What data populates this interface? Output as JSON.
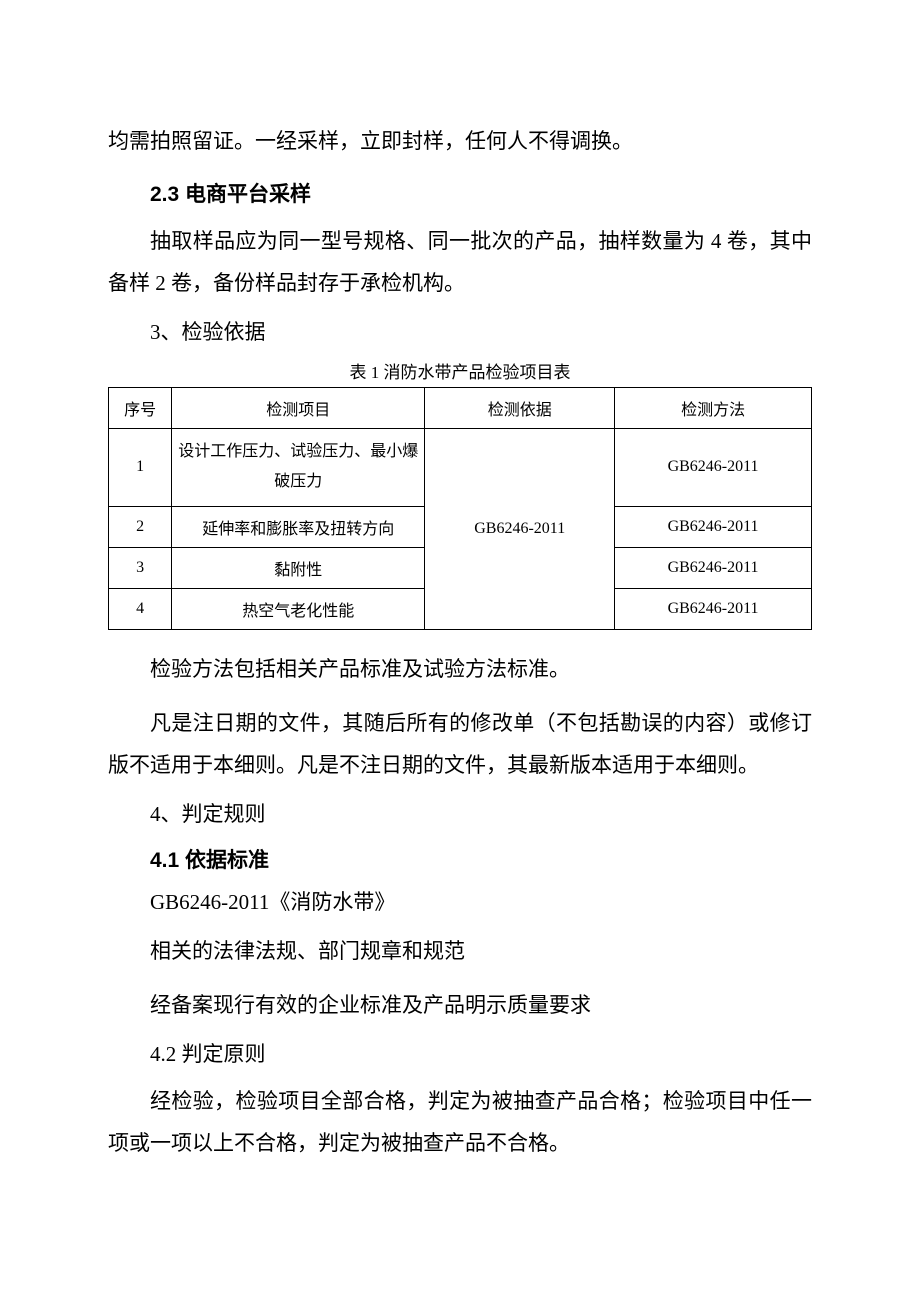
{
  "p_intro": "均需拍照留证。一经采样，立即封样，任何人不得调换。",
  "h_23": "2.3 电商平台采样",
  "p_23": "抽取样品应为同一型号规格、同一批次的产品，抽样数量为 4 卷，其中备样 2 卷，备份样品封存于承检机构。",
  "h_3": "3、检验依据",
  "table": {
    "caption": "表 1 消防水带产品检验项目表",
    "headers": [
      "序号",
      "检测项目",
      "检测依据",
      "检测方法"
    ],
    "basis_merged": "GB6246-2011",
    "rows": [
      {
        "idx": "1",
        "item": "设计工作压力、试验压力、最小爆破压力",
        "method": "GB6246-2011"
      },
      {
        "idx": "2",
        "item": "延伸率和膨胀率及扭转方向",
        "method": "GB6246-2011"
      },
      {
        "idx": "3",
        "item": "黏附性",
        "method": "GB6246-2011"
      },
      {
        "idx": "4",
        "item": "热空气老化性能",
        "method": "GB6246-2011"
      }
    ]
  },
  "p_after_table_1": "检验方法包括相关产品标准及试验方法标准。",
  "p_after_table_2": "凡是注日期的文件，其随后所有的修改单（不包括勘误的内容）或修订版不适用于本细则。凡是不注日期的文件，其最新版本适用于本细则。",
  "h_4": "4、判定规则",
  "h_41": "4.1  依据标准",
  "p_41_std": "GB6246-2011《消防水带》",
  "p_41a": "相关的法律法规、部门规章和规范",
  "p_41b": "经备案现行有效的企业标准及产品明示质量要求",
  "h_42": "4.2   判定原则",
  "p_42": "经检验，检验项目全部合格，判定为被抽查产品合格；检验项目中任一项或一项以上不合格，判定为被抽查产品不合格。"
}
